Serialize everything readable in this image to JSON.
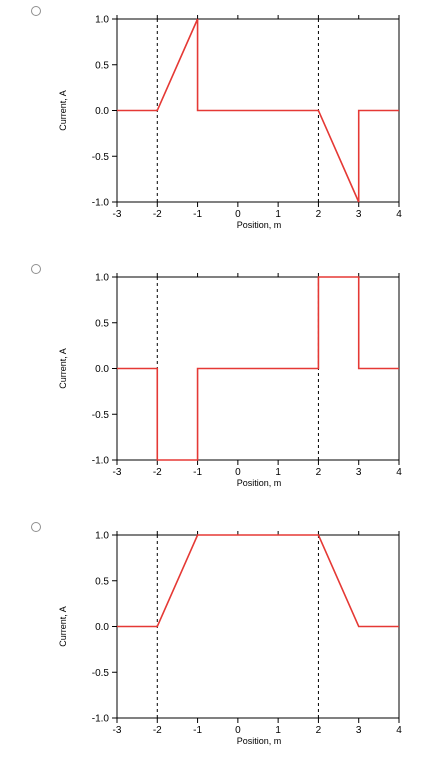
{
  "choices": [
    {
      "selected": false,
      "chart_data": {
        "type": "line",
        "xlabel": "Position, m",
        "ylabel": "Current, A",
        "xlim": [
          -3,
          4
        ],
        "ylim": [
          -1.0,
          1.0
        ],
        "xticks": [
          "-3",
          "-2",
          "-1",
          "0",
          "1",
          "2",
          "3",
          "4"
        ],
        "yticks": [
          "1.0",
          "0.5",
          "0.0",
          "-0.5",
          "-1.0"
        ],
        "vlines": [
          -2,
          2
        ],
        "series": [
          {
            "color": "#e53935",
            "x": [
              -3,
              -2,
              -1,
              -1,
              2,
              3,
              3,
              4
            ],
            "y": [
              0,
              0,
              1,
              0,
              0,
              -1,
              0,
              0
            ]
          }
        ]
      }
    },
    {
      "selected": false,
      "chart_data": {
        "type": "line",
        "xlabel": "Position, m",
        "ylabel": "Current, A",
        "xlim": [
          -3,
          4
        ],
        "ylim": [
          -1.0,
          1.0
        ],
        "xticks": [
          "-3",
          "-2",
          "-1",
          "0",
          "1",
          "2",
          "3",
          "4"
        ],
        "yticks": [
          "1.0",
          "0.5",
          "0.0",
          "-0.5",
          "-1.0"
        ],
        "vlines": [
          -2,
          2
        ],
        "series": [
          {
            "color": "#e53935",
            "x": [
              -3,
              -2,
              -2,
              -1,
              -1,
              2,
              2,
              3,
              3,
              4
            ],
            "y": [
              0,
              0,
              -1,
              -1,
              0,
              0,
              1,
              1,
              0,
              0
            ]
          }
        ]
      }
    },
    {
      "selected": false,
      "chart_data": {
        "type": "line",
        "xlabel": "Position, m",
        "ylabel": "Current, A",
        "xlim": [
          -3,
          4
        ],
        "ylim": [
          -1.0,
          1.0
        ],
        "xticks": [
          "-3",
          "-2",
          "-1",
          "0",
          "1",
          "2",
          "3",
          "4"
        ],
        "yticks": [
          "1.0",
          "0.5",
          "0.0",
          "-0.5",
          "-1.0"
        ],
        "vlines": [
          -2,
          2
        ],
        "series": [
          {
            "color": "#e53935",
            "x": [
              -3,
              -2,
              -1,
              2,
              3,
              4
            ],
            "y": [
              0,
              0,
              1,
              1,
              0,
              0
            ]
          }
        ]
      }
    }
  ]
}
